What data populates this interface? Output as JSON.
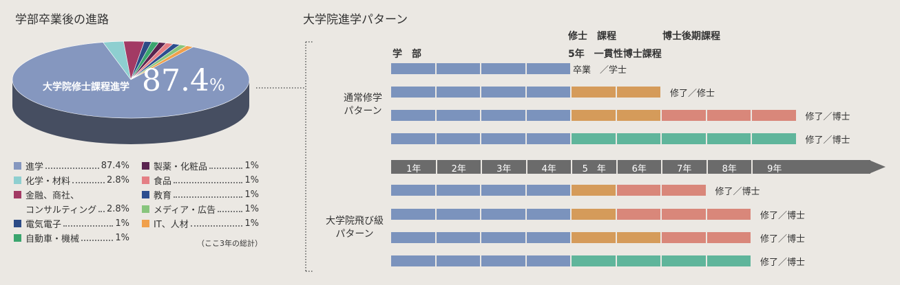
{
  "left": {
    "title": "学部卒業後の進路",
    "pie_label": "大学院修士課程進学",
    "pie_value": "87.4",
    "pie_unit": "%",
    "note": "（ここ3年の総計）"
  },
  "right": {
    "title": "大学院進学パターン",
    "headers": {
      "gakubu": "学　部",
      "shushi": "修士　課程",
      "hakase": "博士後期課程",
      "ikkan": "5年　一貫性博士課程"
    },
    "group_normal": [
      "通常修学",
      "パターン"
    ],
    "group_skip": [
      "大学院飛び級",
      "パターン"
    ],
    "end_labels": [
      "卒業　／学士",
      "修了／修士",
      "修了／博士",
      "修了／博士",
      "修了／博士",
      "修了／博士",
      "修了／博士",
      "修了／博士"
    ]
  },
  "colors": {
    "gakubu": "#7b93bd",
    "shushi": "#d59b5a",
    "hakase": "#d9877a",
    "ikkan": "#5fb59b",
    "axis": "#6b6b6b",
    "pie_main": "#8597bf",
    "pie_side": "#464e61"
  },
  "chart_data": [
    {
      "type": "pie",
      "title": "学部卒業後の進路",
      "slices": [
        {
          "name": "進学",
          "value": 87.4,
          "label": "87.4%",
          "color": "#8597bf"
        },
        {
          "name": "化学・材料",
          "value": 2.8,
          "label": "2.8%",
          "color": "#8ecfd0"
        },
        {
          "name": "金融、商社、コンサルティング",
          "value": 2.8,
          "label": "2.8%",
          "color": "#a23a64"
        },
        {
          "name": "電気電子",
          "value": 1,
          "label": "1%",
          "color": "#2c4b86"
        },
        {
          "name": "自動車・機械",
          "value": 1,
          "label": "1%",
          "color": "#3aa56e"
        },
        {
          "name": "製薬・化粧品",
          "value": 1,
          "label": "1%",
          "color": "#5a2450"
        },
        {
          "name": "食品",
          "value": 1,
          "label": "1%",
          "color": "#e47f85"
        },
        {
          "name": "教育",
          "value": 1,
          "label": "1%",
          "color": "#2c4d8f"
        },
        {
          "name": "メディア・広告",
          "value": 1,
          "label": "1%",
          "color": "#88c57d"
        },
        {
          "name": "IT、人材",
          "value": 1,
          "label": "1%",
          "color": "#f0a04c"
        }
      ],
      "legend_lines": [
        [
          "コンサルティング"
        ]
      ]
    },
    {
      "type": "table",
      "title": "大学院進学パターン",
      "years": [
        "1年",
        "2年",
        "3年",
        "4年",
        "5　年",
        "6年",
        "7年",
        "8年",
        "9年"
      ],
      "rows": [
        {
          "group": "通常修学パターン",
          "segments": [
            {
              "kind": "gakubu",
              "years": 4
            }
          ],
          "end": "卒業　／学士"
        },
        {
          "group": "通常修学パターン",
          "segments": [
            {
              "kind": "gakubu",
              "years": 4
            },
            {
              "kind": "shushi",
              "years": 2
            }
          ],
          "end": "修了／修士"
        },
        {
          "group": "通常修学パターン",
          "segments": [
            {
              "kind": "gakubu",
              "years": 4
            },
            {
              "kind": "shushi",
              "years": 2
            },
            {
              "kind": "hakase",
              "years": 3
            }
          ],
          "end": "修了／博士"
        },
        {
          "group": "通常修学パターン",
          "segments": [
            {
              "kind": "gakubu",
              "years": 4
            },
            {
              "kind": "ikkan",
              "years": 5
            }
          ],
          "end": "修了／博士"
        },
        {
          "group": "大学院飛び級パターン",
          "segments": [
            {
              "kind": "gakubu",
              "years": 4
            },
            {
              "kind": "shushi",
              "years": 1
            },
            {
              "kind": "hakase",
              "years": 2
            }
          ],
          "end": "修了／博士"
        },
        {
          "group": "大学院飛び級パターン",
          "segments": [
            {
              "kind": "gakubu",
              "years": 4
            },
            {
              "kind": "shushi",
              "years": 1
            },
            {
              "kind": "hakase",
              "years": 3
            }
          ],
          "end": "修了／博士"
        },
        {
          "group": "大学院飛び級パターン",
          "segments": [
            {
              "kind": "gakubu",
              "years": 4
            },
            {
              "kind": "shushi",
              "years": 2
            },
            {
              "kind": "hakase",
              "years": 2
            }
          ],
          "end": "修了／博士"
        },
        {
          "group": "大学院飛び級パターン",
          "segments": [
            {
              "kind": "gakubu",
              "years": 4
            },
            {
              "kind": "ikkan",
              "years": 4
            }
          ],
          "end": "修了／博士"
        }
      ]
    }
  ]
}
